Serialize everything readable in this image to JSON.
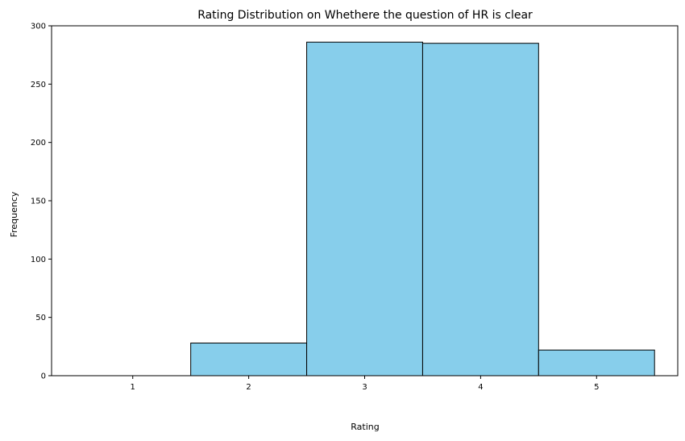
{
  "chart_data": {
    "type": "bar",
    "title": "Rating Distribution on Whethere the question of HR is clear",
    "xlabel": "Rating",
    "ylabel": "Frequency",
    "categories": [
      "1",
      "2",
      "3",
      "4",
      "5"
    ],
    "x": [
      1,
      2,
      3,
      4,
      5
    ],
    "values": [
      0,
      28,
      286,
      285,
      22
    ],
    "xlim": [
      0.3,
      5.7
    ],
    "ylim": [
      0,
      300
    ],
    "yticks": [
      0,
      50,
      100,
      150,
      200,
      250,
      300
    ],
    "grid": false,
    "bar_color": "#87ceeb",
    "edge_color": "#000000"
  }
}
